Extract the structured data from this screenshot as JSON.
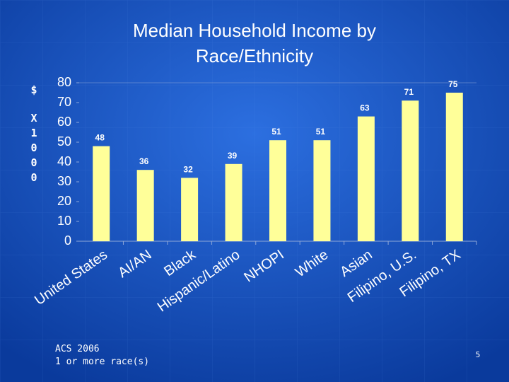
{
  "chart_data": {
    "type": "bar",
    "title_lines": [
      "Median Household Income by",
      "Race/Ethnicity"
    ],
    "y_label_unit": "$",
    "y_label_scale": "X1000",
    "categories": [
      "United States",
      "AI/AN",
      "Black",
      "Hispanic/Latino",
      "NHOPI",
      "White",
      "Asian",
      "Filipino, U.S.",
      "Filipino, TX"
    ],
    "values": [
      48,
      36,
      32,
      39,
      51,
      51,
      63,
      71,
      75
    ],
    "color": "#ffff99",
    "ylim": [
      0,
      80
    ],
    "yticks": [
      0,
      10,
      20,
      30,
      40,
      50,
      60,
      70,
      80
    ],
    "grid": false,
    "notes": [
      "ACS 2006",
      "1 or more race(s)"
    ],
    "page_number": "5"
  }
}
